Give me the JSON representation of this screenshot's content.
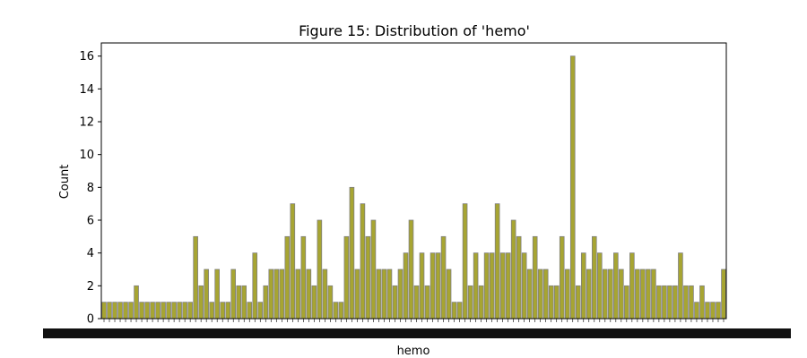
{
  "chart_data": {
    "type": "bar",
    "title": "Figure 15: Distribution of 'hemo'",
    "xlabel": "hemo",
    "ylabel": "Count",
    "ylim": [
      0,
      16.8
    ],
    "yticks": [
      0,
      2,
      4,
      6,
      8,
      10,
      12,
      14,
      16
    ],
    "bar_color": "#A7A532",
    "edge_color": "#808080",
    "grid": false,
    "legend": "none",
    "x_tick_labels_note": "x-axis tick labels are dense and overlapping (unreadable)",
    "values": [
      1,
      1,
      1,
      1,
      1,
      1,
      2,
      1,
      1,
      1,
      1,
      1,
      1,
      1,
      1,
      1,
      1,
      5,
      2,
      3,
      1,
      3,
      1,
      1,
      3,
      2,
      2,
      1,
      4,
      1,
      2,
      3,
      3,
      3,
      5,
      7,
      3,
      5,
      3,
      2,
      6,
      3,
      2,
      1,
      1,
      5,
      8,
      3,
      7,
      5,
      6,
      3,
      3,
      3,
      2,
      3,
      4,
      6,
      2,
      4,
      2,
      4,
      4,
      5,
      3,
      1,
      1,
      7,
      2,
      4,
      2,
      4,
      4,
      7,
      4,
      4,
      6,
      5,
      4,
      3,
      5,
      3,
      3,
      2,
      2,
      5,
      3,
      16,
      2,
      4,
      3,
      5,
      4,
      3,
      3,
      4,
      3,
      2,
      4,
      3,
      3,
      3,
      3,
      2,
      2,
      2,
      2,
      4,
      2,
      2,
      1,
      2,
      1,
      1,
      1,
      3
    ]
  }
}
